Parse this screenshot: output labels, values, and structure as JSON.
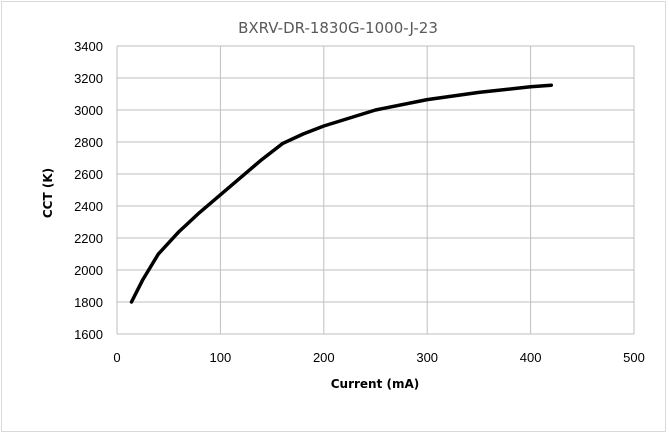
{
  "chart_data": {
    "type": "line",
    "title": "BXRV-DR-1830G-1000-J-23",
    "xlabel": "Current (mA)",
    "ylabel": "CCT (K)",
    "xlim": [
      0,
      500
    ],
    "ylim": [
      1600,
      3400
    ],
    "x_ticks": [
      0,
      100,
      200,
      300,
      400,
      500
    ],
    "y_ticks": [
      1600,
      1800,
      2000,
      2200,
      2400,
      2600,
      2800,
      3000,
      3200,
      3400
    ],
    "grid": true,
    "legend": "none",
    "series": [
      {
        "color": "#000000",
        "points": [
          [
            14,
            1800
          ],
          [
            25,
            1940
          ],
          [
            40,
            2100
          ],
          [
            60,
            2240
          ],
          [
            80,
            2360
          ],
          [
            100,
            2470
          ],
          [
            120,
            2580
          ],
          [
            140,
            2690
          ],
          [
            160,
            2790
          ],
          [
            180,
            2850
          ],
          [
            200,
            2900
          ],
          [
            250,
            3000
          ],
          [
            300,
            3065
          ],
          [
            350,
            3110
          ],
          [
            400,
            3145
          ],
          [
            420,
            3155
          ]
        ]
      }
    ]
  }
}
